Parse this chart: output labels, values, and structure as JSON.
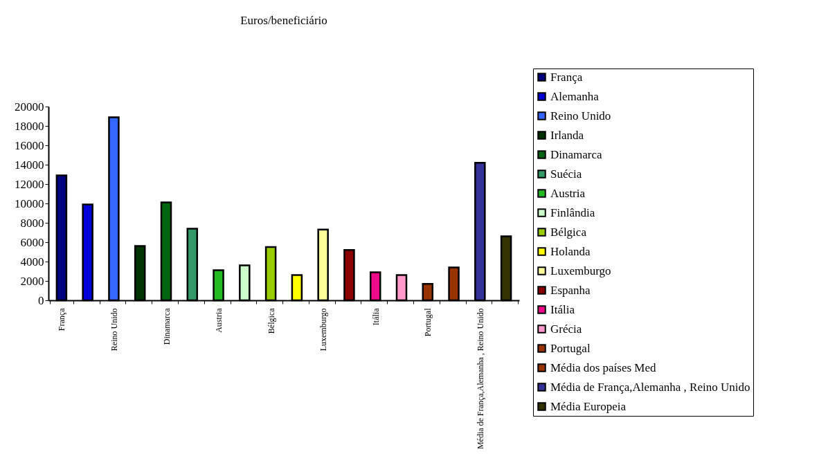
{
  "chart_data": {
    "type": "bar",
    "title": "Euros/beneficiário",
    "categories": [
      "França",
      null,
      "Reino Unido",
      null,
      "Dinamarca",
      null,
      "Austria",
      null,
      "Bélgica",
      null,
      "Luxemburgo",
      null,
      "Itália",
      null,
      "Portugal",
      null,
      "Média de França,Alemanha , Reino Unido",
      null
    ],
    "series": [
      {
        "name": "França",
        "color": "#000080",
        "values": [
          12900,
          null,
          null,
          null,
          null,
          null,
          null,
          null,
          null,
          null,
          null,
          null,
          null,
          null,
          null,
          null,
          null,
          null
        ]
      },
      {
        "name": "Alemanha",
        "color": "#0000d8",
        "values": [
          null,
          9900,
          null,
          null,
          null,
          null,
          null,
          null,
          null,
          null,
          null,
          null,
          null,
          null,
          null,
          null,
          null,
          null
        ]
      },
      {
        "name": "Reino Unido",
        "color": "#3366ff",
        "values": [
          null,
          null,
          18900,
          null,
          null,
          null,
          null,
          null,
          null,
          null,
          null,
          null,
          null,
          null,
          null,
          null,
          null,
          null
        ]
      },
      {
        "name": "Irlanda",
        "color": "#003300",
        "values": [
          null,
          null,
          null,
          5600,
          null,
          null,
          null,
          null,
          null,
          null,
          null,
          null,
          null,
          null,
          null,
          null,
          null,
          null
        ]
      },
      {
        "name": "Dinamarca",
        "color": "#006411",
        "values": [
          null,
          null,
          null,
          null,
          10100,
          null,
          null,
          null,
          null,
          null,
          null,
          null,
          null,
          null,
          null,
          null,
          null,
          null
        ]
      },
      {
        "name": "Suécia",
        "color": "#339966",
        "values": [
          null,
          null,
          null,
          null,
          null,
          7400,
          null,
          null,
          null,
          null,
          null,
          null,
          null,
          null,
          null,
          null,
          null,
          null
        ]
      },
      {
        "name": "Austria",
        "color": "#22bb22",
        "values": [
          null,
          null,
          null,
          null,
          null,
          null,
          3100,
          null,
          null,
          null,
          null,
          null,
          null,
          null,
          null,
          null,
          null,
          null
        ]
      },
      {
        "name": "Finlândia",
        "color": "#ccffcc",
        "values": [
          null,
          null,
          null,
          null,
          null,
          null,
          null,
          3600,
          null,
          null,
          null,
          null,
          null,
          null,
          null,
          null,
          null,
          null
        ]
      },
      {
        "name": "Bélgica",
        "color": "#99cc00",
        "values": [
          null,
          null,
          null,
          null,
          null,
          null,
          null,
          null,
          5500,
          null,
          null,
          null,
          null,
          null,
          null,
          null,
          null,
          null
        ]
      },
      {
        "name": "Holanda",
        "color": "#ffff00",
        "values": [
          null,
          null,
          null,
          null,
          null,
          null,
          null,
          null,
          null,
          2600,
          null,
          null,
          null,
          null,
          null,
          null,
          null,
          null
        ]
      },
      {
        "name": "Luxemburgo",
        "color": "#ffff99",
        "values": [
          null,
          null,
          null,
          null,
          null,
          null,
          null,
          null,
          null,
          null,
          7300,
          null,
          null,
          null,
          null,
          null,
          null,
          null
        ]
      },
      {
        "name": "Espanha",
        "color": "#8b0000",
        "values": [
          null,
          null,
          null,
          null,
          null,
          null,
          null,
          null,
          null,
          null,
          null,
          5200,
          null,
          null,
          null,
          null,
          null,
          null
        ]
      },
      {
        "name": "Itália",
        "color": "#ee0a88",
        "values": [
          null,
          null,
          null,
          null,
          null,
          null,
          null,
          null,
          null,
          null,
          null,
          null,
          2900,
          null,
          null,
          null,
          null,
          null
        ]
      },
      {
        "name": "Grécia",
        "color": "#ff99cc",
        "values": [
          null,
          null,
          null,
          null,
          null,
          null,
          null,
          null,
          null,
          null,
          null,
          null,
          null,
          2600,
          null,
          null,
          null,
          null
        ]
      },
      {
        "name": "Portugal",
        "color": "#993300",
        "values": [
          null,
          null,
          null,
          null,
          null,
          null,
          null,
          null,
          null,
          null,
          null,
          null,
          null,
          null,
          1700,
          null,
          null,
          null
        ]
      },
      {
        "name": "Média dos países Med",
        "color": "#993300",
        "values": [
          null,
          null,
          null,
          null,
          null,
          null,
          null,
          null,
          null,
          null,
          null,
          null,
          null,
          null,
          null,
          3400,
          null,
          null
        ]
      },
      {
        "name": "Média de França,Alemanha , Reino Unido",
        "color": "#333399",
        "values": [
          null,
          null,
          null,
          null,
          null,
          null,
          null,
          null,
          null,
          null,
          null,
          null,
          null,
          null,
          null,
          null,
          14200,
          null
        ]
      },
      {
        "name": "Média Europeia",
        "color": "#333300",
        "values": [
          null,
          null,
          null,
          null,
          null,
          null,
          null,
          null,
          null,
          null,
          null,
          null,
          null,
          null,
          null,
          null,
          null,
          6600
        ]
      }
    ],
    "ylim": [
      0,
      20000
    ],
    "yticks": [
      0,
      2000,
      4000,
      6000,
      8000,
      10000,
      12000,
      14000,
      16000,
      18000,
      20000
    ],
    "grid": false,
    "legend": "right"
  }
}
